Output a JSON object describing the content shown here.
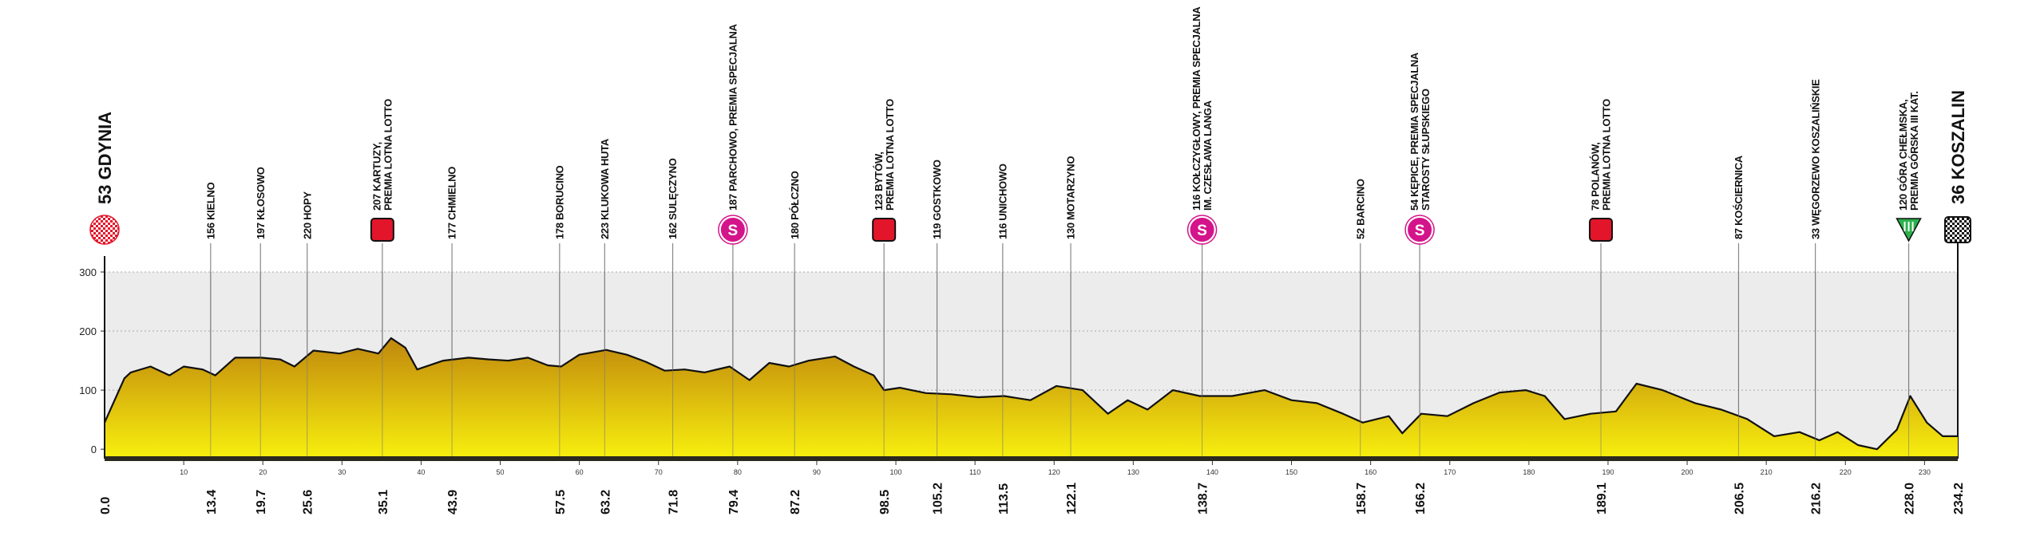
{
  "chart_data": {
    "type": "area",
    "x": [
      0,
      2.5,
      3.3,
      5.8,
      8.2,
      10,
      12.4,
      14,
      16.5,
      19.8,
      22.2,
      24,
      26.4,
      29.7,
      32,
      34.6,
      36.2,
      38,
      39.5,
      42.8,
      46,
      48.6,
      51,
      53.5,
      56,
      57.7,
      60,
      63.4,
      66,
      68.4,
      70.8,
      73.3,
      75.8,
      79,
      81.5,
      84,
      86.5,
      89,
      92.3,
      94.7,
      97.2,
      98.5,
      100.5,
      103.8,
      107,
      110.4,
      113.7,
      117,
      120.3,
      123.6,
      126.8,
      129.3,
      131.8,
      135,
      138.4,
      142.5,
      146.6,
      150,
      153.2,
      156.5,
      159,
      162.3,
      164,
      166.4,
      169.7,
      173,
      176.3,
      179.6,
      182,
      184.5,
      187.8,
      191,
      193.6,
      196.9,
      201,
      204.3,
      207.6,
      211,
      214.2,
      216.7,
      219,
      221.6,
      224,
      226.5,
      228.2,
      230.3,
      232.3,
      234.2
    ],
    "values": [
      45,
      120,
      130,
      140,
      125,
      140,
      135,
      125,
      155,
      155,
      152,
      140,
      167,
      162,
      170,
      162,
      188,
      172,
      135,
      150,
      155,
      152,
      150,
      155,
      142,
      140,
      160,
      168,
      160,
      148,
      133,
      135,
      130,
      140,
      117,
      146,
      140,
      150,
      157,
      140,
      125,
      100,
      104,
      95,
      93,
      88,
      90,
      83,
      107,
      100,
      60,
      83,
      67,
      100,
      90,
      90,
      100,
      83,
      78,
      60,
      45,
      56,
      27,
      60,
      56,
      78,
      96,
      100,
      90,
      51,
      60,
      64,
      111,
      100,
      78,
      67,
      51,
      22,
      29,
      15,
      29,
      7,
      0,
      33,
      90,
      45,
      22,
      22
    ],
    "fill_colors": [
      "#c0870d",
      "#f8f00e"
    ],
    "line_color": "#111111",
    "xlim": [
      0,
      234.2
    ],
    "ylim": [
      -16,
      300
    ],
    "yticks": [
      0,
      100,
      200,
      300
    ],
    "xticks": [
      10,
      20,
      30,
      40,
      50,
      60,
      70,
      80,
      90,
      100,
      110,
      120,
      130,
      140,
      150,
      160,
      170,
      180,
      190,
      200,
      210,
      220,
      230
    ],
    "grid": true,
    "waypoints": [
      {
        "km": {
          "value": 0,
          "label": "0.0"
        },
        "label": [
          "53 GDYNIA"
        ],
        "icon": "start"
      },
      {
        "km": 13.4,
        "label": [
          "156 KIELNO"
        ]
      },
      {
        "km": 19.7,
        "label": [
          "197 KŁOSOWO"
        ]
      },
      {
        "km": 25.6,
        "label": [
          "220 HOPY"
        ]
      },
      {
        "km": 35.1,
        "label": [
          "207 KARTUZY,",
          "PREMIA LOTNA LOTTO"
        ],
        "icon": "sprint"
      },
      {
        "km": 43.9,
        "label": [
          "177 CHMIELNO"
        ]
      },
      {
        "km": 57.5,
        "label": [
          "178 BORUCINO"
        ]
      },
      {
        "km": 63.2,
        "label": [
          "223 KLUKOWA HUTA"
        ]
      },
      {
        "km": 71.8,
        "label": [
          "162 SULĘCZYNO"
        ]
      },
      {
        "km": 79.4,
        "label": [
          "187 PARCHOWO, PREMIA SPECJALNA"
        ],
        "icon": "special",
        "icon_label": "S"
      },
      {
        "km": 87.2,
        "label": [
          "180 PÓŁCZNO"
        ]
      },
      {
        "km": 98.5,
        "label": [
          "123 BYTÓW,",
          "PREMIA LOTNA LOTTO"
        ],
        "icon": "sprint"
      },
      {
        "km": 105.2,
        "label": [
          "119 GOSTKOWO"
        ]
      },
      {
        "km": 113.5,
        "label": [
          "116 UNICHOWO"
        ]
      },
      {
        "km": 122.1,
        "label": [
          "130 MOTARZYNO"
        ]
      },
      {
        "km": 138.7,
        "label": [
          "116 KOŁCZYGŁOWY, PREMIA SPECJALNA",
          "IM. CZESŁAWA LANGA"
        ],
        "icon": "special",
        "icon_label": "S"
      },
      {
        "km": 158.7,
        "label": [
          "52 BARCINO"
        ]
      },
      {
        "km": 166.2,
        "label": [
          "54 KĘPICE, PREMIA SPECJALNA",
          "STAROSTY SŁUPSKIEGO"
        ],
        "icon": "special",
        "icon_label": "S"
      },
      {
        "km": 189.1,
        "label": [
          "78 POLANÓW,",
          "PREMIA LOTNA LOTTO"
        ],
        "icon": "sprint"
      },
      {
        "km": 206.5,
        "label": [
          "87 KOŚCIERNICA"
        ]
      },
      {
        "km": 216.2,
        "label": [
          "33 WĘGORZEWO KOSZALIŃSKIE"
        ]
      },
      {
        "km": {
          "value": 228,
          "label": "228.0"
        },
        "label": [
          "120 GÓRA CHEŁMSKA,",
          "PREMIA GÓRSKA III KAT."
        ],
        "icon": "mountain"
      },
      {
        "km": 234.2,
        "label": [
          "36 KOSZALIN"
        ],
        "icon": "finish"
      }
    ]
  }
}
